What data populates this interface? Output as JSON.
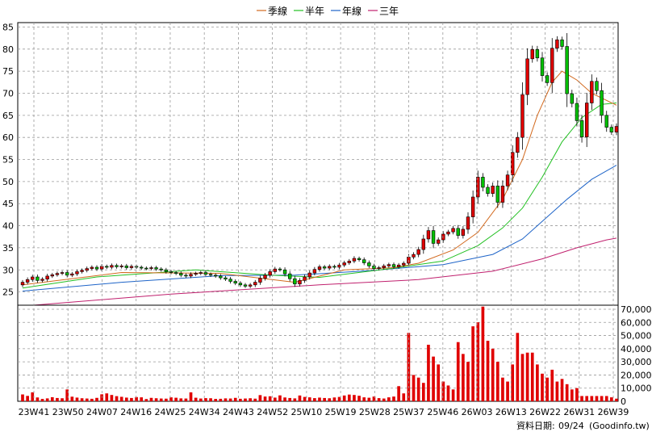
{
  "chart_data": {
    "type": "candlestick",
    "legend": [
      {
        "name": "季線",
        "color": "#d2691e"
      },
      {
        "name": "半年",
        "color": "#22c022"
      },
      {
        "name": "年線",
        "color": "#1e64c8"
      },
      {
        "name": "三年",
        "color": "#c0206e"
      }
    ],
    "price_axis": {
      "ticks": [
        25,
        30,
        35,
        40,
        45,
        50,
        55,
        60,
        65,
        70,
        75,
        80,
        85
      ],
      "ylim": [
        22,
        86
      ]
    },
    "volume_axis": {
      "ticks": [
        "0",
        "10,000",
        "20,000",
        "30,000",
        "40,000",
        "50,000",
        "60,000",
        "70,000"
      ],
      "max": 70000
    },
    "x_labels": [
      "23W41",
      "23W50",
      "24W07",
      "24W16",
      "24W25",
      "24W34",
      "24W43",
      "24W52",
      "25W10",
      "25W19",
      "25W28",
      "25W37",
      "25W46",
      "26W03",
      "26W13",
      "26W22",
      "26W31",
      "26W39"
    ],
    "close": [
      27.2,
      27.8,
      28.4,
      27.6,
      27.9,
      28.6,
      28.9,
      29.2,
      29.4,
      28.8,
      29.1,
      29.6,
      29.9,
      30.3,
      30.6,
      30.2,
      30.8,
      30.6,
      31.0,
      30.7,
      30.9,
      30.5,
      30.8,
      30.6,
      30.4,
      30.3,
      30.5,
      30.2,
      30.0,
      29.6,
      29.4,
      29.2,
      28.8,
      28.6,
      29.0,
      29.2,
      29.4,
      29.0,
      28.8,
      28.6,
      28.2,
      27.9,
      27.4,
      27.0,
      26.6,
      26.3,
      26.6,
      27.2,
      28.1,
      28.8,
      29.6,
      30.2,
      30.0,
      29.1,
      28.0,
      26.8,
      27.6,
      28.4,
      29.3,
      30.1,
      30.7,
      30.4,
      30.8,
      30.6,
      31.1,
      31.6,
      32.0,
      32.6,
      32.3,
      31.6,
      30.9,
      30.3,
      30.5,
      30.9,
      31.2,
      30.7,
      31.1,
      31.5,
      32.9,
      33.5,
      34.6,
      37.0,
      38.9,
      36.0,
      36.8,
      38.1,
      38.6,
      39.4,
      37.8,
      39.2,
      42.0,
      46.5,
      51.0,
      48.7,
      47.3,
      49.0,
      45.3,
      49.0,
      51.5,
      56.6,
      60.0,
      69.7,
      77.8,
      79.9,
      78.0,
      74.0,
      72.4,
      80.2,
      82.1,
      80.6,
      69.9,
      67.7,
      63.8,
      60.1,
      67.8,
      72.7,
      70.6,
      65.0,
      62.3,
      61.2,
      62.5
    ],
    "volume": [
      5200,
      4100,
      6800,
      2900,
      1800,
      2200,
      3100,
      2500,
      2300,
      9000,
      3500,
      2800,
      2300,
      2100,
      1900,
      2600,
      5300,
      6000,
      4800,
      3900,
      3400,
      2800,
      2500,
      3200,
      3000,
      1700,
      2600,
      2300,
      2100,
      2000,
      3000,
      2700,
      2200,
      2100,
      6800,
      2700,
      2100,
      2400,
      2300,
      1800,
      1900,
      2200,
      2100,
      2600,
      1900,
      2100,
      2300,
      2000,
      4700,
      3600,
      3800,
      2800,
      4500,
      2900,
      2500,
      2200,
      4400,
      3300,
      3000,
      2400,
      2800,
      2500,
      2300,
      2900,
      3300,
      4400,
      5100,
      4800,
      4200,
      3000,
      2700,
      3600,
      2400,
      2100,
      3000,
      3600,
      11500,
      6000,
      52000,
      20000,
      18000,
      14000,
      43000,
      34000,
      28000,
      15000,
      12000,
      9000,
      45000,
      36000,
      30000,
      57000,
      60000,
      72000,
      46000,
      40000,
      30000,
      18000,
      15000,
      28000,
      52000,
      36000,
      37000,
      37000,
      28000,
      21000,
      18000,
      24000,
      15000,
      17000,
      13000,
      9000,
      10000,
      4000,
      4000,
      4000,
      4000,
      4000,
      4000,
      3000,
      2000
    ],
    "ma_quarter": [
      [
        0,
        26.6
      ],
      [
        20,
        29.4
      ],
      [
        40,
        29.2
      ],
      [
        55,
        27.2
      ],
      [
        65,
        30.0
      ],
      [
        75,
        30.5
      ],
      [
        80,
        31.5
      ],
      [
        87,
        34.5
      ],
      [
        92,
        38.5
      ],
      [
        97,
        46.0
      ],
      [
        101,
        55.0
      ],
      [
        104,
        65.0
      ],
      [
        107,
        72.5
      ],
      [
        109,
        75.0
      ],
      [
        112,
        73.0
      ],
      [
        115,
        70.0
      ],
      [
        120,
        67.3
      ]
    ],
    "ma_half": [
      [
        0,
        25.9
      ],
      [
        15,
        28.4
      ],
      [
        35,
        30.0
      ],
      [
        50,
        28.8
      ],
      [
        60,
        28.3
      ],
      [
        75,
        30.4
      ],
      [
        85,
        32.0
      ],
      [
        92,
        35.5
      ],
      [
        97,
        39.5
      ],
      [
        101,
        44.0
      ],
      [
        105,
        51.0
      ],
      [
        109,
        59.0
      ],
      [
        113,
        64.5
      ],
      [
        117,
        67.5
      ],
      [
        120,
        67.8
      ]
    ],
    "ma_year": [
      [
        0,
        25.2
      ],
      [
        20,
        27.2
      ],
      [
        40,
        28.7
      ],
      [
        55,
        28.8
      ],
      [
        70,
        29.8
      ],
      [
        85,
        31.2
      ],
      [
        95,
        33.5
      ],
      [
        101,
        37.0
      ],
      [
        105,
        41.0
      ],
      [
        110,
        46.0
      ],
      [
        115,
        50.5
      ],
      [
        120,
        53.7
      ]
    ],
    "ma_three": [
      [
        0,
        21.8
      ],
      [
        30,
        24.5
      ],
      [
        60,
        26.6
      ],
      [
        80,
        27.8
      ],
      [
        95,
        29.7
      ],
      [
        105,
        32.5
      ],
      [
        112,
        35.0
      ],
      [
        118,
        36.8
      ],
      [
        120,
        37.2
      ]
    ]
  },
  "footer": {
    "label": "資料日期:",
    "date": "09/24",
    "source": "(Goodinfo.tw)"
  }
}
